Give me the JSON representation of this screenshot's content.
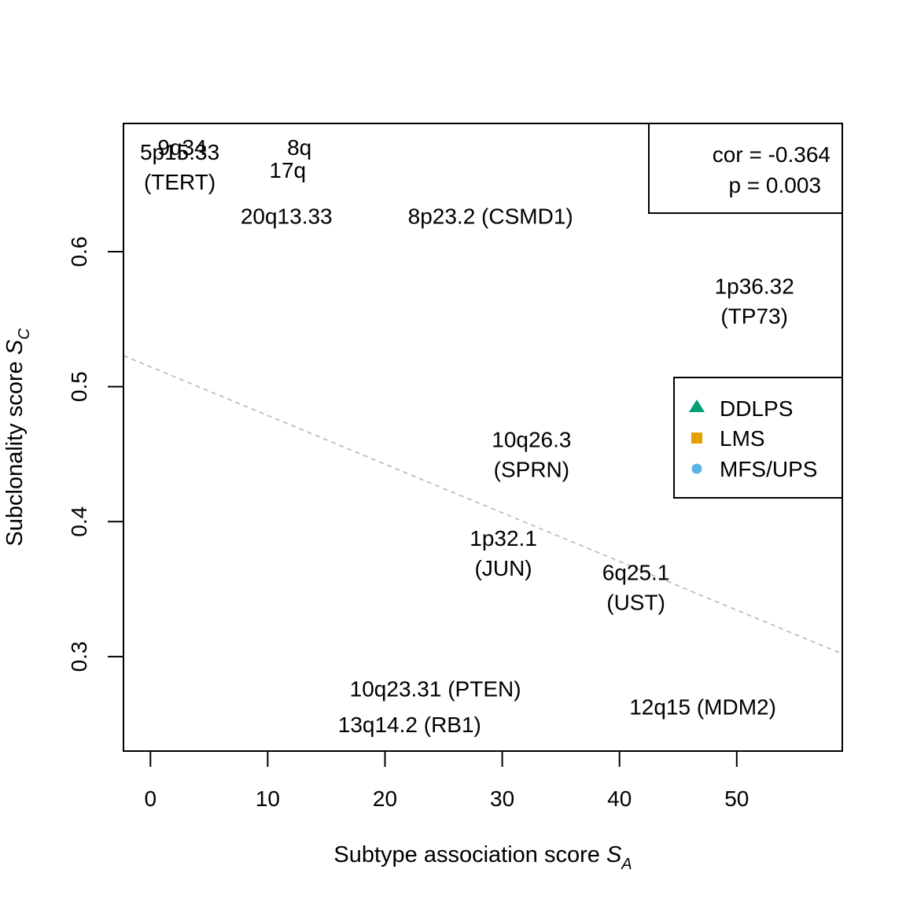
{
  "chart_data": {
    "type": "scatter",
    "xlabel": "Subtype association score",
    "xlabel_symbol": "S",
    "xlabel_subscript": "A",
    "ylabel": "Subclonality score",
    "ylabel_symbol": "S",
    "ylabel_subscript": "C",
    "xlim": [
      -2.3,
      59
    ],
    "ylim": [
      0.23,
      0.695
    ],
    "xticks": [
      0,
      10,
      20,
      30,
      40,
      50
    ],
    "yticks": [
      0.3,
      0.4,
      0.5,
      0.6
    ],
    "xtick_labels": [
      "0",
      "10",
      "20",
      "30",
      "40",
      "50"
    ],
    "ytick_labels": [
      "0.3",
      "0.4",
      "0.5",
      "0.6"
    ],
    "grid": false,
    "trendline": {
      "style": "dashed",
      "color": "#bdbdbd",
      "x": [
        -2.3,
        59
      ],
      "y": [
        0.523,
        0.302
      ]
    },
    "stats_box": {
      "cor_text": "cor = -0.364",
      "p_text": "p = 0.003",
      "placement": "top-right"
    },
    "legend": {
      "placement": "right",
      "entries": [
        {
          "label": "DDLPS",
          "shape": "triangle",
          "color": "#009E73"
        },
        {
          "label": "LMS",
          "shape": "square",
          "color": "#E69F00"
        },
        {
          "label": "MFS/UPS",
          "shape": "circle",
          "color": "#56B4E9"
        }
      ]
    },
    "labels": [
      {
        "lines": [
          "9q34"
        ],
        "x": 2.7,
        "y": 0.6775
      },
      {
        "lines": [
          "5p15.33",
          "(TERT)"
        ],
        "x": 2.5,
        "y": 0.663
      },
      {
        "lines": [
          "8q"
        ],
        "x": 12.7,
        "y": 0.6775
      },
      {
        "lines": [
          "17q"
        ],
        "x": 11.7,
        "y": 0.6605
      },
      {
        "lines": [
          "20q13.33"
        ],
        "x": 11.6,
        "y": 0.6265
      },
      {
        "lines": [
          "8p23.2 (CSMD1)"
        ],
        "x": 29.0,
        "y": 0.6265
      },
      {
        "lines": [
          "1p36.32",
          "(TP73)"
        ],
        "x": 51.5,
        "y": 0.5635
      },
      {
        "lines": [
          "10q26.3",
          "(SPRN)"
        ],
        "x": 32.5,
        "y": 0.45
      },
      {
        "lines": [
          "1p32.1",
          "(JUN)"
        ],
        "x": 30.1,
        "y": 0.3767
      },
      {
        "lines": [
          "6q25.1",
          "(UST)"
        ],
        "x": 41.4,
        "y": 0.3515
      },
      {
        "lines": [
          "10q23.31 (PTEN)"
        ],
        "x": 24.3,
        "y": 0.2762
      },
      {
        "lines": [
          "13q14.2 (RB1)"
        ],
        "x": 22.1,
        "y": 0.2498
      },
      {
        "lines": [
          "12q15 (MDM2)"
        ],
        "x": 47.1,
        "y": 0.263
      }
    ]
  }
}
